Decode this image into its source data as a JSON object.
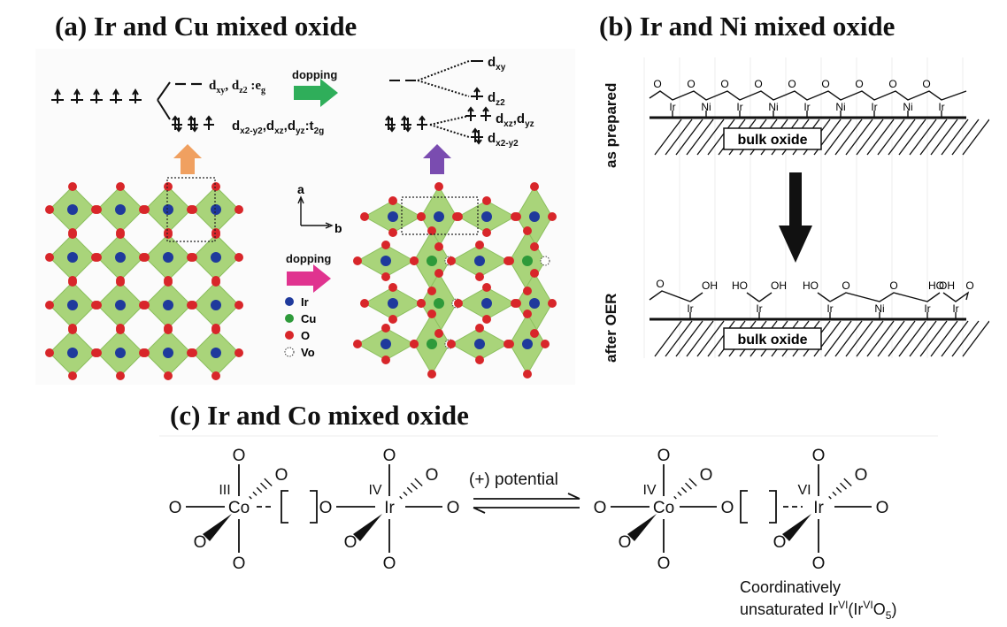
{
  "panels": {
    "a": {
      "title": "(a) Ir and Cu mixed oxide",
      "levels": {
        "upper_label_main": "d",
        "upper_sub1": "xy",
        "upper_mid": ", d",
        "upper_sub2": "z2",
        "upper_tail": " :e",
        "upper_sub3": "g",
        "lower_label_main": "d",
        "lower_sub1": "x2-y2",
        "lower_mid1": ",d",
        "lower_sub2": "xz",
        "lower_mid2": ",d",
        "lower_sub3": "yz",
        "lower_tail": ":t",
        "lower_sub4": "2g",
        "split_dxy": "xy",
        "split_dz2": "z2",
        "split_dxz_dyz_a": "xz",
        "split_dxz_dyz_b": "yz",
        "split_dx2y2": "x2-y2",
        "d": "d"
      },
      "dopping_top": "dopping",
      "dopping_mid": "dopping",
      "axis_a": "a",
      "axis_b": "b",
      "legend": [
        "Ir",
        "Cu",
        "O",
        "Vo"
      ],
      "colors": {
        "ir": "#1f3a9c",
        "cu": "#2e9a3a",
        "o": "#d8262a",
        "octa": "#a9d47a",
        "green_arrow": "#2fae5a",
        "pink_arrow": "#e0338f",
        "orange_arrow": "#f0a060",
        "purple_arrow": "#7a4cb0"
      }
    },
    "b": {
      "title": "(b) Ir and Ni mixed oxide",
      "label_top": "as prepared",
      "label_bottom": "after OER",
      "bulk": "bulk oxide",
      "top_metals": [
        "Ir",
        "Ni",
        "Ir",
        "Ni",
        "Ir",
        "Ni",
        "Ir",
        "Ni",
        "Ir"
      ],
      "bottom_metals": [
        "Ir",
        "Ir",
        "Ir",
        "Ni",
        "Ir",
        "Ir"
      ],
      "o": "O",
      "oh": "OH",
      "ho": "HO"
    },
    "c": {
      "title": "(c) Ir and Co mixed oxide",
      "potential": "(+) potential",
      "co": "Co",
      "ir": "Ir",
      "o": "O",
      "ox_iii": "III",
      "ox_iv": "IV",
      "ox_vi": "VI",
      "caption_line1": "Coordinatively",
      "caption_line2_a": "unsaturated Ir",
      "caption_sup1": "VI",
      "caption_line2_b": "(Ir",
      "caption_sup2": "VI",
      "caption_line2_c": "O",
      "caption_sub": "5",
      "caption_line2_d": ")"
    }
  }
}
